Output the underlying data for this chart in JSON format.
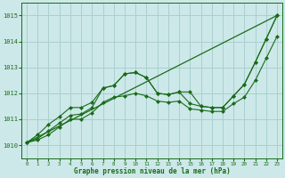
{
  "title": "Graphe pression niveau de la mer (hPa)",
  "background_color": "#cce8e8",
  "grid_color": "#aacfcf",
  "line_color": "#1a6b1a",
  "text_color": "#1a6b1a",
  "xlim": [
    -0.5,
    23.5
  ],
  "ylim": [
    1009.5,
    1015.5
  ],
  "yticks": [
    1010,
    1011,
    1012,
    1013,
    1014,
    1015
  ],
  "xticks": [
    0,
    1,
    2,
    3,
    4,
    5,
    6,
    7,
    8,
    9,
    10,
    11,
    12,
    13,
    14,
    15,
    16,
    17,
    18,
    19,
    20,
    21,
    22,
    23
  ],
  "straight_line": {
    "x": [
      0,
      23
    ],
    "y": [
      1010.1,
      1015.0
    ]
  },
  "line1_x": [
    0,
    1,
    2,
    3,
    4,
    5,
    6,
    7,
    8,
    9,
    10,
    11,
    12,
    13,
    14,
    15,
    16,
    17,
    18,
    19,
    20,
    21,
    22,
    23
  ],
  "line1_y": [
    1010.1,
    1010.25,
    1010.55,
    1010.85,
    1011.15,
    1011.2,
    1011.45,
    1012.2,
    1012.3,
    1012.75,
    1012.8,
    1012.6,
    1012.0,
    1011.95,
    1012.05,
    1011.6,
    1011.5,
    1011.45,
    1011.45,
    1011.9,
    1012.35,
    1013.2,
    1014.1,
    1015.0
  ],
  "line2_x": [
    0,
    1,
    2,
    3,
    4,
    5,
    6,
    7,
    8,
    9,
    10,
    11,
    12,
    13,
    14,
    15,
    16,
    17,
    18,
    19,
    20,
    21,
    22,
    23
  ],
  "line2_y": [
    1010.1,
    1010.4,
    1010.8,
    1011.1,
    1011.45,
    1011.45,
    1011.65,
    1012.2,
    1012.3,
    1012.75,
    1012.8,
    1012.6,
    1012.0,
    1011.95,
    1012.05,
    1012.05,
    1011.5,
    1011.45,
    1011.45,
    1011.9,
    1012.35,
    1013.2,
    1014.1,
    1015.0
  ],
  "line3_x": [
    0,
    1,
    2,
    3,
    4,
    5,
    6,
    7,
    8,
    9,
    10,
    11,
    12,
    13,
    14,
    15,
    16,
    17,
    18,
    19,
    20,
    21,
    22,
    23
  ],
  "line3_y": [
    1010.1,
    1010.2,
    1010.4,
    1010.7,
    1011.0,
    1011.0,
    1011.25,
    1011.65,
    1011.85,
    1011.9,
    1012.0,
    1011.9,
    1011.7,
    1011.65,
    1011.7,
    1011.4,
    1011.35,
    1011.3,
    1011.3,
    1011.6,
    1011.85,
    1012.5,
    1013.35,
    1014.2
  ]
}
